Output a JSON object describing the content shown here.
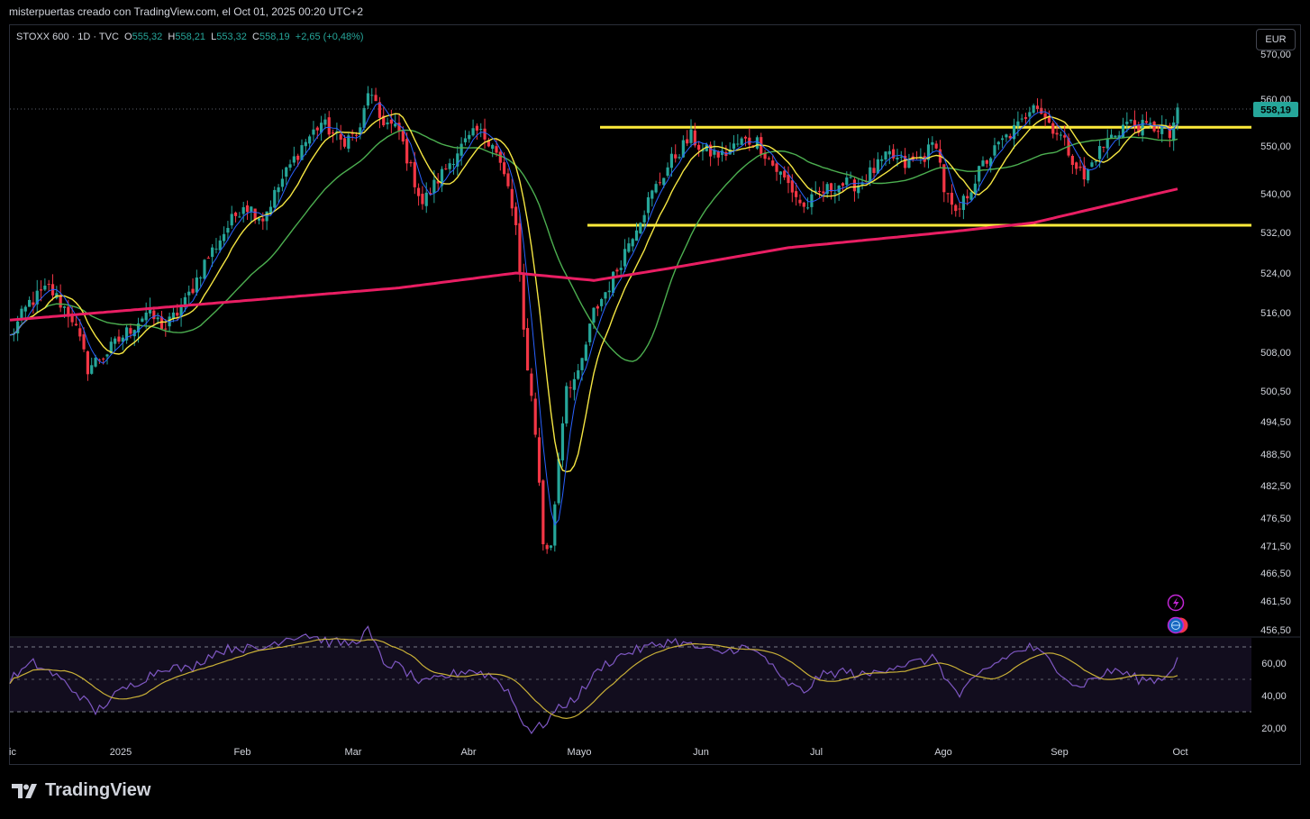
{
  "attribution": "misterpuertas creado con TradingView.com, el Oct 01, 2025 00:20 UTC+2",
  "legend": {
    "symbol": "STOXX 600 · 1D · TVC",
    "open_label": "O",
    "open": "555,32",
    "high_label": "H",
    "high": "558,21",
    "low_label": "L",
    "low": "553,32",
    "close_label": "C",
    "close": "558,19",
    "change": "+2,65 (+0,48%)"
  },
  "currency_button": "EUR",
  "last_price_tag": "558,19",
  "footer": {
    "brand": "TradingView"
  },
  "icons": [
    "lightning-icon",
    "globe-icon"
  ],
  "colors": {
    "up": "#26a69a",
    "down": "#f23645",
    "ma_fast": "#2962ff",
    "ma_mid": "#f5e642",
    "ma_slow": "#4caf50",
    "ma_long": "#e91e63",
    "levels": "#ffeb3b",
    "rsi": "#7e57c2",
    "rsi_ma": "#c9b037"
  },
  "chart_data": [
    {
      "type": "candlestick",
      "title": "STOXX 600 · 1D · TVC",
      "x_ticks": [
        "ic",
        "2025",
        "Feb",
        "Mar",
        "Abr",
        "Mayo",
        "Jun",
        "Jul",
        "Ago",
        "Sep",
        "Oct"
      ],
      "y_ticks": [
        "570,00",
        "560,00",
        "550,00",
        "540,00",
        "532,00",
        "524,00",
        "516,00",
        "508,00",
        "500,50",
        "494,50",
        "488,50",
        "482,50",
        "476,50",
        "471,50",
        "466,50",
        "461,50",
        "456,50"
      ],
      "y_scale": "log",
      "ylim": [
        454,
        572
      ],
      "horizontal_levels": [
        554.0,
        533.5
      ],
      "last_close": 558.19,
      "series_description": "Daily candles Dec 2024 – Sep 30 2025 with moving averages",
      "anchors": [
        [
          0,
          511
        ],
        [
          5,
          518
        ],
        [
          10,
          521
        ],
        [
          16,
          515
        ],
        [
          20,
          505
        ],
        [
          25,
          508
        ],
        [
          30,
          512
        ],
        [
          35,
          516
        ],
        [
          40,
          513
        ],
        [
          45,
          518
        ],
        [
          50,
          526
        ],
        [
          55,
          532
        ],
        [
          60,
          538
        ],
        [
          65,
          535
        ],
        [
          70,
          543
        ],
        [
          75,
          550
        ],
        [
          80,
          555
        ],
        [
          85,
          551
        ],
        [
          90,
          553
        ],
        [
          92,
          562
        ],
        [
          95,
          556
        ],
        [
          100,
          553
        ],
        [
          103,
          545
        ],
        [
          106,
          538
        ],
        [
          110,
          543
        ],
        [
          115,
          549
        ],
        [
          120,
          553
        ],
        [
          124,
          551
        ],
        [
          128,
          541
        ],
        [
          130,
          533
        ],
        [
          132,
          512
        ],
        [
          135,
          493
        ],
        [
          137,
          472
        ],
        [
          139,
          471
        ],
        [
          141,
          488
        ],
        [
          143,
          502
        ],
        [
          146,
          503
        ],
        [
          150,
          516
        ],
        [
          155,
          523
        ],
        [
          160,
          532
        ],
        [
          165,
          540
        ],
        [
          170,
          547
        ],
        [
          175,
          552
        ],
        [
          178,
          549
        ],
        [
          183,
          548
        ],
        [
          188,
          551
        ],
        [
          192,
          551
        ],
        [
          196,
          546
        ],
        [
          200,
          542
        ],
        [
          204,
          537
        ],
        [
          208,
          540
        ],
        [
          213,
          542
        ],
        [
          218,
          542
        ],
        [
          222,
          545
        ],
        [
          226,
          548
        ],
        [
          230,
          546
        ],
        [
          235,
          548
        ],
        [
          238,
          551
        ],
        [
          240,
          541
        ],
        [
          243,
          535
        ],
        [
          246,
          540
        ],
        [
          250,
          546
        ],
        [
          255,
          551
        ],
        [
          260,
          555
        ],
        [
          263,
          560
        ],
        [
          266,
          556
        ],
        [
          270,
          552
        ],
        [
          274,
          546
        ],
        [
          276,
          543
        ],
        [
          279,
          548
        ],
        [
          283,
          552
        ],
        [
          287,
          555
        ],
        [
          291,
          554
        ],
        [
          296,
          554
        ],
        [
          298,
          552
        ],
        [
          300,
          558.2
        ]
      ],
      "ma_fast_len": 5,
      "ma_mid_len": 10,
      "ma_slow_len": 30,
      "ma_long": [
        [
          0,
          514.5
        ],
        [
          100,
          521
        ],
        [
          130,
          524
        ],
        [
          150,
          522.5
        ],
        [
          170,
          525
        ],
        [
          200,
          529
        ],
        [
          240,
          532
        ],
        [
          263,
          534
        ],
        [
          300,
          541
        ]
      ]
    },
    {
      "type": "line",
      "title": "",
      "y_ticks": [
        "60,00",
        "40,00",
        "20,00"
      ],
      "ylim": [
        15,
        75
      ],
      "bands": [
        70,
        30
      ],
      "series": [
        {
          "values_description": "RSI"
        },
        {
          "values_description": "RSI moving average"
        }
      ],
      "rsi_anchors": [
        [
          0,
          50
        ],
        [
          6,
          60
        ],
        [
          12,
          52
        ],
        [
          18,
          40
        ],
        [
          22,
          30
        ],
        [
          28,
          42
        ],
        [
          34,
          50
        ],
        [
          40,
          58
        ],
        [
          46,
          56
        ],
        [
          52,
          66
        ],
        [
          58,
          70
        ],
        [
          64,
          68
        ],
        [
          70,
          75
        ],
        [
          76,
          78
        ],
        [
          82,
          73
        ],
        [
          88,
          72
        ],
        [
          92,
          80
        ],
        [
          96,
          60
        ],
        [
          100,
          58
        ],
        [
          106,
          47
        ],
        [
          112,
          52
        ],
        [
          118,
          56
        ],
        [
          124,
          52
        ],
        [
          128,
          43
        ],
        [
          131,
          27
        ],
        [
          134,
          18
        ],
        [
          137,
          22
        ],
        [
          140,
          30
        ],
        [
          146,
          40
        ],
        [
          152,
          58
        ],
        [
          158,
          66
        ],
        [
          164,
          70
        ],
        [
          170,
          74
        ],
        [
          176,
          70
        ],
        [
          182,
          66
        ],
        [
          188,
          70
        ],
        [
          194,
          64
        ],
        [
          198,
          50
        ],
        [
          204,
          42
        ],
        [
          208,
          52
        ],
        [
          214,
          55
        ],
        [
          220,
          52
        ],
        [
          226,
          58
        ],
        [
          232,
          60
        ],
        [
          238,
          63
        ],
        [
          241,
          48
        ],
        [
          244,
          40
        ],
        [
          250,
          55
        ],
        [
          256,
          64
        ],
        [
          262,
          70
        ],
        [
          266,
          64
        ],
        [
          270,
          55
        ],
        [
          274,
          45
        ],
        [
          278,
          50
        ],
        [
          284,
          56
        ],
        [
          290,
          50
        ],
        [
          296,
          50
        ],
        [
          300,
          62
        ]
      ]
    }
  ]
}
